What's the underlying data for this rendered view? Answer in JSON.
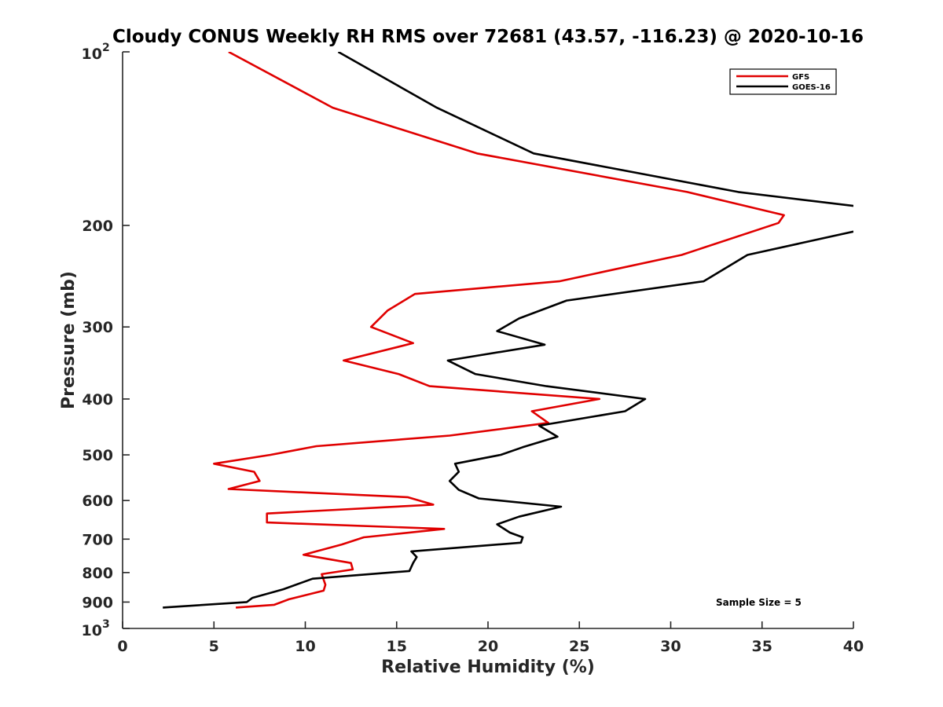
{
  "chart_data": {
    "type": "line",
    "title": "Cloudy CONUS Weekly RH RMS over 72681 (43.57, -116.23) @ 2020-10-16",
    "xlabel": "Relative Humidity (%)",
    "ylabel": "Pressure (mb)",
    "xlim": [
      0,
      40
    ],
    "ylim": [
      100,
      1000
    ],
    "y_scale": "log",
    "y_reversed": true,
    "x_ticks": [
      "0",
      "5",
      "10",
      "15",
      "20",
      "25",
      "30",
      "35",
      "40"
    ],
    "y_ticks": [
      {
        "value": 100,
        "base": "10",
        "exp": "2"
      },
      {
        "value": 200,
        "label": "200"
      },
      {
        "value": 300,
        "label": "300"
      },
      {
        "value": 400,
        "label": "400"
      },
      {
        "value": 500,
        "label": "500"
      },
      {
        "value": 600,
        "label": "600"
      },
      {
        "value": 700,
        "label": "700"
      },
      {
        "value": 800,
        "label": "800"
      },
      {
        "value": 900,
        "label": "900"
      },
      {
        "value": 1000,
        "base": "10",
        "exp": "3"
      }
    ],
    "grid": false,
    "legend_position": "top-right",
    "annotation": "Sample Size = 5",
    "series": [
      {
        "name": "GFS",
        "color": "#e00000",
        "points": [
          [
            5.8,
            100
          ],
          [
            11.5,
            125
          ],
          [
            19.4,
            150
          ],
          [
            30.9,
            175
          ],
          [
            36.2,
            192
          ],
          [
            35.9,
            198
          ],
          [
            30.6,
            225
          ],
          [
            23.9,
            250
          ],
          [
            16.0,
            263
          ],
          [
            14.5,
            281
          ],
          [
            13.6,
            300
          ],
          [
            15.9,
            320
          ],
          [
            12.1,
            343
          ],
          [
            15.1,
            362
          ],
          [
            16.8,
            380
          ],
          [
            26.1,
            400
          ],
          [
            22.4,
            420
          ],
          [
            23.3,
            440
          ],
          [
            17.9,
            463
          ],
          [
            10.6,
            483
          ],
          [
            8.1,
            500
          ],
          [
            5.0,
            518
          ],
          [
            7.2,
            535
          ],
          [
            7.5,
            555
          ],
          [
            5.8,
            573
          ],
          [
            15.6,
            592
          ],
          [
            17.0,
            610
          ],
          [
            7.9,
            632
          ],
          [
            7.9,
            655
          ],
          [
            17.6,
            672
          ],
          [
            13.2,
            695
          ],
          [
            12.0,
            715
          ],
          [
            9.9,
            745
          ],
          [
            12.5,
            770
          ],
          [
            12.6,
            790
          ],
          [
            10.9,
            805
          ],
          [
            11.1,
            840
          ],
          [
            11.0,
            860
          ],
          [
            9.1,
            890
          ],
          [
            8.3,
            910
          ],
          [
            6.2,
            920
          ]
        ]
      },
      {
        "name": "GOES-16",
        "color": "#000000",
        "points": [
          [
            11.8,
            100
          ],
          [
            17.2,
            125
          ],
          [
            22.5,
            150
          ],
          [
            33.7,
            175
          ],
          [
            40.0,
            185
          ],
          [
            null,
            null
          ],
          [
            40.0,
            205
          ],
          [
            34.2,
            225
          ],
          [
            31.8,
            250
          ],
          [
            24.3,
            270
          ],
          [
            21.7,
            290
          ],
          [
            20.5,
            305
          ],
          [
            23.1,
            322
          ],
          [
            17.8,
            343
          ],
          [
            19.3,
            362
          ],
          [
            23.2,
            380
          ],
          [
            28.6,
            400
          ],
          [
            27.5,
            420
          ],
          [
            22.8,
            445
          ],
          [
            23.8,
            465
          ],
          [
            21.9,
            485
          ],
          [
            20.7,
            500
          ],
          [
            18.2,
            518
          ],
          [
            18.4,
            535
          ],
          [
            17.9,
            555
          ],
          [
            18.4,
            575
          ],
          [
            19.5,
            595
          ],
          [
            24.0,
            615
          ],
          [
            21.7,
            640
          ],
          [
            20.5,
            660
          ],
          [
            21.2,
            682
          ],
          [
            21.9,
            695
          ],
          [
            21.8,
            710
          ],
          [
            15.8,
            735
          ],
          [
            16.1,
            752
          ],
          [
            15.9,
            770
          ],
          [
            15.7,
            795
          ],
          [
            10.4,
            820
          ],
          [
            8.8,
            855
          ],
          [
            7.1,
            885
          ],
          [
            6.8,
            900
          ],
          [
            2.2,
            920
          ]
        ]
      }
    ]
  }
}
